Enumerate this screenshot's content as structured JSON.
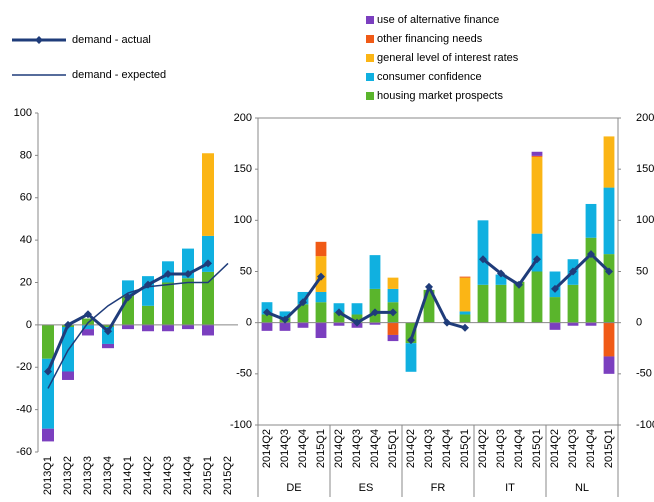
{
  "chart_data": [
    {
      "type": "bar",
      "categories": [
        "2013Q1",
        "2013Q2",
        "2013Q3",
        "2013Q4",
        "2014Q1",
        "2014Q2",
        "2014Q3",
        "2014Q4",
        "2015Q1",
        "2015Q2"
      ],
      "ylim": [
        -60,
        100
      ],
      "yticks": [
        -60,
        -40,
        -20,
        0,
        20,
        40,
        60,
        80,
        100
      ],
      "series": [
        {
          "name": "use of alternative finance",
          "color": "#7b3fbf",
          "values": [
            -6,
            -4,
            -3,
            -2,
            -2,
            -3,
            -3,
            -2,
            -5,
            null
          ]
        },
        {
          "name": "other financing needs",
          "color": "#f05a16",
          "values": [
            0,
            0,
            0,
            0,
            0,
            0,
            0,
            0,
            0,
            null
          ]
        },
        {
          "name": "general level of interest rates",
          "color": "#fbb515",
          "values": [
            0,
            0,
            0,
            0,
            0,
            0,
            0,
            0,
            39,
            null
          ]
        },
        {
          "name": "consumer confidence",
          "color": "#10b0e0",
          "values": [
            -33,
            -21,
            -2,
            -8,
            7,
            14,
            10,
            14,
            17,
            null
          ]
        },
        {
          "name": "housing market prospects",
          "color": "#5ab52c",
          "values": [
            -16,
            -1,
            3,
            -1,
            14,
            9,
            20,
            22,
            25,
            null
          ]
        },
        {
          "name": "demand - actual",
          "type": "line",
          "color": "#1f3c7a",
          "marker": "diamond",
          "values": [
            -22,
            0,
            5,
            -3,
            13,
            19,
            24,
            24,
            29,
            null
          ]
        },
        {
          "name": "demand - expected",
          "type": "line",
          "color": "#1f3c7a",
          "values": [
            -30,
            -12,
            1,
            9,
            15,
            18,
            19,
            20,
            20,
            29
          ]
        }
      ]
    },
    {
      "type": "bar",
      "groups": [
        "DE",
        "ES",
        "FR",
        "IT",
        "NL"
      ],
      "categories": [
        "2014Q2",
        "2014Q3",
        "2014Q4",
        "2015Q1",
        "2014Q2",
        "2014Q3",
        "2014Q4",
        "2015Q1",
        "2014Q2",
        "2014Q3",
        "2014Q4",
        "2015Q1",
        "2014Q2",
        "2014Q3",
        "2014Q4",
        "2015Q1",
        "2014Q2",
        "2014Q3",
        "2014Q4",
        "2015Q1"
      ],
      "ylim": [
        -100,
        200
      ],
      "yticks": [
        -100,
        -50,
        0,
        50,
        100,
        150,
        200
      ],
      "y2lim": [
        -100,
        200
      ],
      "y2ticks": [
        -100,
        -50,
        0,
        50,
        100,
        150,
        200
      ],
      "series": [
        {
          "color": "#7b3fbf",
          "values": [
            -8,
            -8,
            -5,
            -15,
            -3,
            -5,
            -2,
            -6,
            0,
            0,
            0,
            0,
            0,
            0,
            0,
            4,
            -7,
            -3,
            -3,
            -17
          ]
        },
        {
          "color": "#f05a16",
          "values": [
            0,
            0,
            0,
            14,
            0,
            0,
            0,
            -12,
            0,
            0,
            0,
            1,
            0,
            0,
            0,
            1,
            0,
            0,
            0,
            -33
          ]
        },
        {
          "color": "#fbb515",
          "values": [
            0,
            0,
            0,
            35,
            0,
            0,
            0,
            11,
            0,
            0,
            0,
            33,
            0,
            0,
            0,
            75,
            0,
            0,
            0,
            50
          ]
        },
        {
          "color": "#10b0e0",
          "values": [
            12,
            6,
            12,
            10,
            9,
            11,
            33,
            13,
            -28,
            0,
            0,
            3,
            63,
            10,
            0,
            37,
            25,
            25,
            33,
            65
          ]
        },
        {
          "color": "#5ab52c",
          "values": [
            8,
            5,
            18,
            20,
            10,
            8,
            33,
            20,
            -20,
            32,
            0,
            8,
            37,
            37,
            40,
            50,
            25,
            37,
            83,
            67
          ]
        },
        {
          "type": "line",
          "color": "#1f3c7a",
          "marker": "diamond",
          "values": [
            10,
            3,
            20,
            45,
            10,
            0,
            10,
            10,
            -17,
            35,
            0,
            -5,
            62,
            48,
            37,
            62,
            33,
            50,
            67,
            50
          ]
        }
      ]
    }
  ]
}
